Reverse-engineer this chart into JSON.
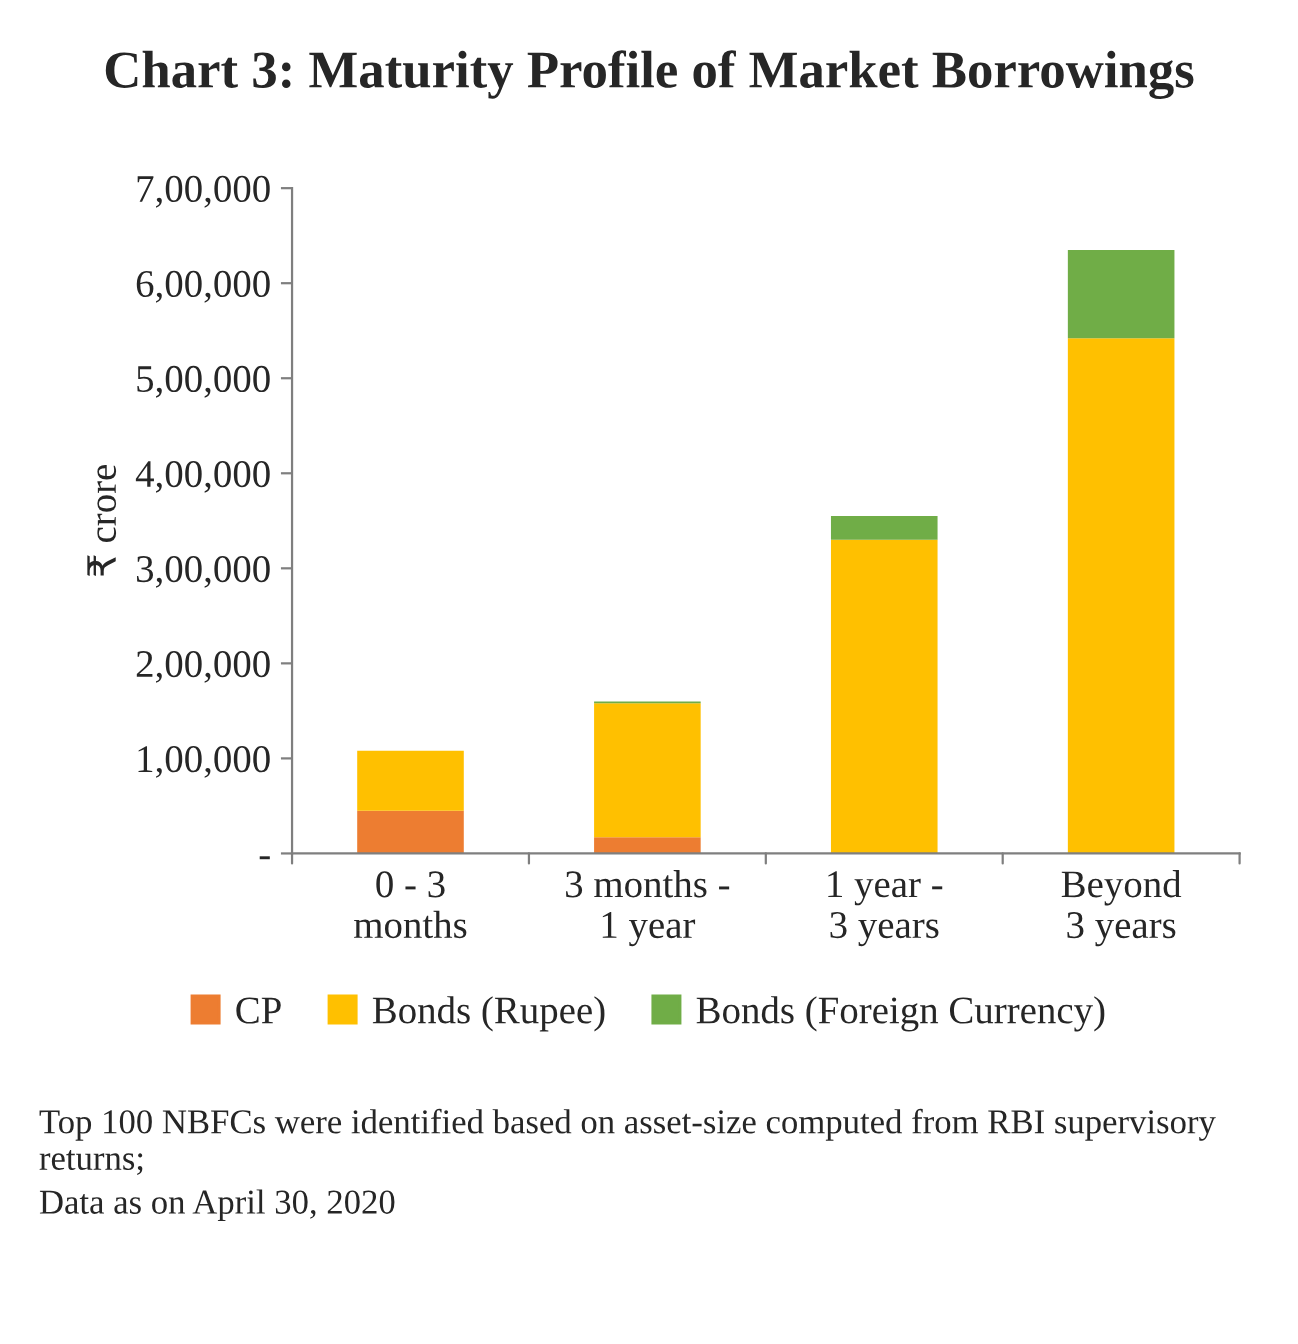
{
  "chart_data": {
    "type": "bar",
    "title": "Chart 3: Maturity Profile of Market Borrowings",
    "ylabel": "₹ crore",
    "stacked": true,
    "categories": [
      "0 - 3\nmonths",
      "3 months -\n1 year",
      "1 year -\n3 years",
      "Beyond\n3 years"
    ],
    "series": [
      {
        "name": "CP",
        "color": "#ed7d31",
        "values": [
          45000,
          17000,
          0,
          0
        ]
      },
      {
        "name": "Bonds (Rupee)",
        "color": "#ffc000",
        "values": [
          63000,
          141000,
          330000,
          542000
        ]
      },
      {
        "name": "Bonds (Foreign Currency)",
        "color": "#70ad47",
        "values": [
          0,
          2000,
          25000,
          93000
        ]
      }
    ],
    "ylim": [
      0,
      700000
    ],
    "yticks": [
      {
        "value": 0,
        "label": "-"
      },
      {
        "value": 100000,
        "label": "1,00,000"
      },
      {
        "value": 200000,
        "label": "2,00,000"
      },
      {
        "value": 300000,
        "label": "3,00,000"
      },
      {
        "value": 400000,
        "label": "4,00,000"
      },
      {
        "value": 500000,
        "label": "5,00,000"
      },
      {
        "value": 600000,
        "label": "6,00,000"
      },
      {
        "value": 700000,
        "label": "7,00,000"
      }
    ],
    "legend": "bottom",
    "grid": false,
    "annotations": [
      "Top 100 NBFCs were identified based on asset-size computed from RBI supervisory returns;",
      "Data as on April 30, 2020"
    ]
  }
}
